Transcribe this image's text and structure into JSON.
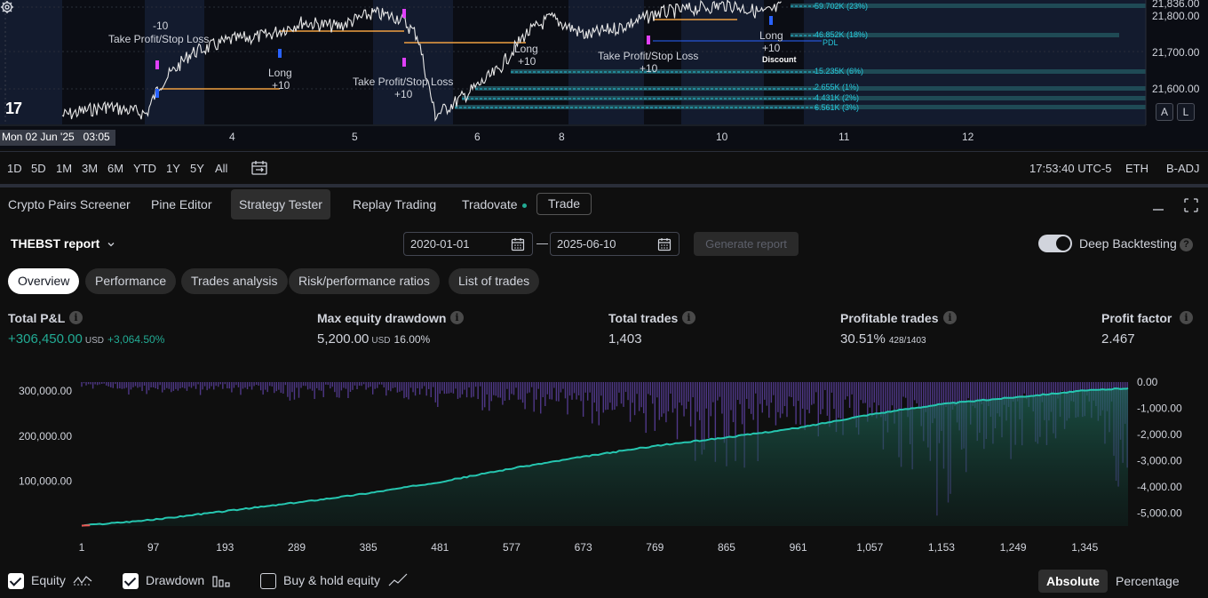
{
  "price_chart": {
    "price_labels": [
      "21,836.00",
      "21,800.00",
      "21,700.00",
      "21,600.00"
    ],
    "time_labels": [
      "4",
      "5",
      "6",
      "8",
      "10",
      "11",
      "12"
    ],
    "cursor_date": "Mon 02 Jun '25   03:05",
    "scale_buttons": [
      "A",
      "L"
    ],
    "annotations": {
      "tpsl1": "Take Profit/Stop Loss",
      "tpsl2": "Take Profit/Stop Loss",
      "tpsl3": "Take Profit/Stop Loss",
      "long1": "Long",
      "long2": "Long",
      "long3": "Long",
      "p10a": "+10",
      "p10b": "+10",
      "p10c": "+10",
      "p10d": "+10",
      "p10e": "+10",
      "p10f": "+10",
      "m10": "-10",
      "discount": "Discount",
      "pdl": "PDL"
    },
    "volume_levels": [
      "59.702K (23%)",
      "46.852K (18%)",
      "15.235K (6%)",
      "2.655K (1%)",
      "4.431K (2%)",
      "6.561K (3%)"
    ]
  },
  "range_bar": {
    "ranges": [
      "1D",
      "5D",
      "1M",
      "3M",
      "6M",
      "YTD",
      "1Y",
      "5Y",
      "All"
    ],
    "clock": "17:53:40 UTC-5",
    "session": "ETH",
    "adjust": "B-ADJ"
  },
  "panel_tabs": {
    "tabs": [
      "Crypto Pairs Screener",
      "Pine Editor",
      "Strategy Tester",
      "Replay Trading",
      "Tradovate"
    ],
    "trade_label": "Trade"
  },
  "report": {
    "title": "THEBST report",
    "start_date": "2020-01-01",
    "end_date": "2025-06-10",
    "date_separator": "—",
    "generate_label": "Generate report",
    "deep_backtesting_label": "Deep Backtesting",
    "deep_backtesting_on": true
  },
  "subtabs": [
    "Overview",
    "Performance",
    "Trades analysis",
    "Risk/performance ratios",
    "List of trades"
  ],
  "metrics": {
    "total_pnl": {
      "label": "Total P&L",
      "value": "+306,450.00",
      "unit": "USD",
      "sub": "+3,064.50%"
    },
    "max_dd": {
      "label": "Max equity drawdown",
      "value": "5,200.00",
      "unit": "USD",
      "sub": "16.00%"
    },
    "total_trades": {
      "label": "Total trades",
      "value": "1,403"
    },
    "profitable": {
      "label": "Profitable trades",
      "value": "30.51%",
      "sub": "428/1403"
    },
    "profit_factor": {
      "label": "Profit factor",
      "value": "2.467"
    }
  },
  "chart_data": {
    "type": "area",
    "x_tick_labels": [
      "1",
      "97",
      "193",
      "289",
      "385",
      "481",
      "577",
      "673",
      "769",
      "865",
      "961",
      "1,057",
      "1,153",
      "1,249",
      "1,345"
    ],
    "left_axis_labels": [
      "300,000.00",
      "200,000.00",
      "100,000.00"
    ],
    "right_axis_labels": [
      "0.00",
      "-1,000.00",
      "-2,000.00",
      "-3,000.00",
      "-4,000.00",
      "-5,000.00"
    ],
    "ylim_equity": [
      0,
      320000
    ],
    "ylim_drawdown": [
      -5500,
      0
    ],
    "x": [
      1,
      97,
      193,
      289,
      385,
      481,
      577,
      673,
      769,
      865,
      961,
      1057,
      1153,
      1249,
      1345,
      1403
    ],
    "series": [
      {
        "name": "Equity",
        "values": [
          1000,
          14000,
          33000,
          52000,
          73000,
          98000,
          128000,
          154000,
          178000,
          197000,
          218000,
          248000,
          271000,
          286000,
          301000,
          306450
        ],
        "color": "#26c6b0"
      },
      {
        "name": "Drawdown",
        "values": [
          -200,
          -600,
          -400,
          -700,
          -500,
          -900,
          -1100,
          -1600,
          -2000,
          -3600,
          -1800,
          -2200,
          -4900,
          -2800,
          -1900,
          -5200
        ],
        "color": "#7e57c2"
      }
    ]
  },
  "legend": {
    "equity": "Equity",
    "drawdown": "Drawdown",
    "buyhold": "Buy & hold equity",
    "equity_on": true,
    "drawdown_on": true,
    "buyhold_on": false,
    "absolute": "Absolute",
    "percentage": "Percentage"
  }
}
